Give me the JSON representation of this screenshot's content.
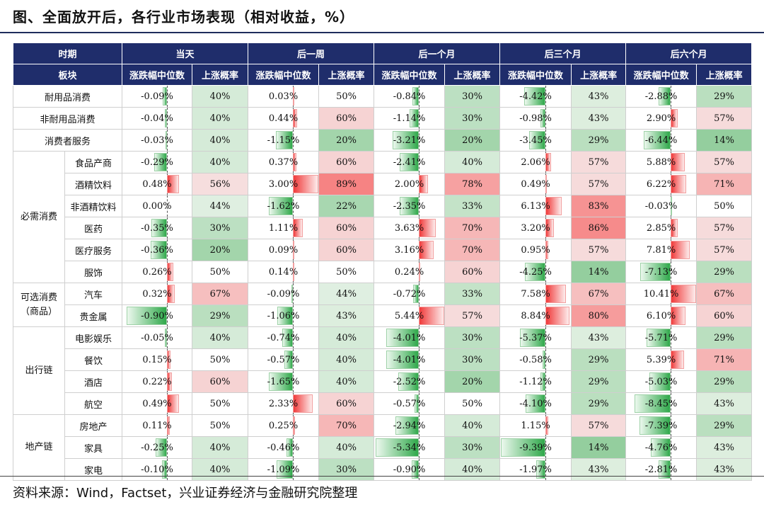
{
  "title": "图、全面放开后，各行业市场表现（相对收益，%）",
  "source": "资料来源：Wind，Factset，兴业证券经济与金融研究院整理",
  "header": {
    "period_label": "时期",
    "sector_label": "板块",
    "periods": [
      "当天",
      "后一周",
      "后一个月",
      "后三个月",
      "后六个月"
    ],
    "median_label": "涨跌幅中位数",
    "prob_label": "上涨概率"
  },
  "colors": {
    "header_bg": "#1f2d6b",
    "up": "#f03a3a",
    "down": "#2fa84a"
  },
  "bar_scale": [
    1.0,
    3.0,
    5.5,
    9.5,
    10.5
  ],
  "rows": [
    {
      "group": "",
      "sector": "耐用品消费",
      "med": [
        "-0.09%",
        "0.03%",
        "-0.84%",
        "-4.42%",
        "-2.88%"
      ],
      "prob": [
        "40%",
        "50%",
        "30%",
        "43%",
        "29%"
      ]
    },
    {
      "group": "",
      "sector": "非耐用品消费",
      "med": [
        "-0.04%",
        "0.44%",
        "-1.14%",
        "-0.98%",
        "2.90%"
      ],
      "prob": [
        "40%",
        "60%",
        "30%",
        "43%",
        "57%"
      ]
    },
    {
      "group": "",
      "sector": "消费者服务",
      "med": [
        "-0.03%",
        "-1.15%",
        "-3.21%",
        "-3.45%",
        "-6.44%"
      ],
      "prob": [
        "40%",
        "20%",
        "20%",
        "29%",
        "14%"
      ]
    },
    {
      "group": "必需消费",
      "sector": "食品产商",
      "med": [
        "-0.29%",
        "0.37%",
        "-2.41%",
        "2.06%",
        "5.88%"
      ],
      "prob": [
        "40%",
        "60%",
        "40%",
        "57%",
        "57%"
      ]
    },
    {
      "group": "必需消费",
      "sector": "酒精饮料",
      "med": [
        "0.48%",
        "3.00%",
        "2.00%",
        "0.49%",
        "6.22%"
      ],
      "prob": [
        "56%",
        "89%",
        "78%",
        "57%",
        "71%"
      ]
    },
    {
      "group": "必需消费",
      "sector": "非酒精饮料",
      "med": [
        "0.00%",
        "-1.62%",
        "-2.35%",
        "6.13%",
        "-0.03%"
      ],
      "prob": [
        "44%",
        "22%",
        "33%",
        "83%",
        "50%"
      ]
    },
    {
      "group": "必需消费",
      "sector": "医药",
      "med": [
        "-0.35%",
        "1.11%",
        "3.63%",
        "3.20%",
        "2.85%"
      ],
      "prob": [
        "30%",
        "60%",
        "70%",
        "86%",
        "57%"
      ]
    },
    {
      "group": "必需消费",
      "sector": "医疗服务",
      "med": [
        "-0.36%",
        "0.09%",
        "3.16%",
        "0.95%",
        "7.81%"
      ],
      "prob": [
        "20%",
        "60%",
        "70%",
        "57%",
        "57%"
      ]
    },
    {
      "group": "必需消费",
      "sector": "服饰",
      "med": [
        "0.26%",
        "0.14%",
        "0.24%",
        "-4.25%",
        "-7.13%"
      ],
      "prob": [
        "50%",
        "50%",
        "60%",
        "14%",
        "29%"
      ]
    },
    {
      "group": "可选消费（商品）",
      "sector": "汽车",
      "med": [
        "0.32%",
        "-0.09%",
        "-0.72%",
        "7.58%",
        "10.41%"
      ],
      "prob": [
        "67%",
        "44%",
        "33%",
        "67%",
        "67%"
      ]
    },
    {
      "group": "可选消费（商品）",
      "sector": "贵金属",
      "med": [
        "-0.90%",
        "-1.06%",
        "5.44%",
        "8.84%",
        "6.10%"
      ],
      "prob": [
        "29%",
        "43%",
        "57%",
        "80%",
        "60%"
      ]
    },
    {
      "group": "出行链",
      "sector": "电影娱乐",
      "med": [
        "-0.05%",
        "-0.74%",
        "-4.01%",
        "-5.37%",
        "-5.71%"
      ],
      "prob": [
        "40%",
        "40%",
        "30%",
        "43%",
        "29%"
      ]
    },
    {
      "group": "出行链",
      "sector": "餐饮",
      "med": [
        "0.15%",
        "-0.57%",
        "-4.01%",
        "-0.58%",
        "5.39%"
      ],
      "prob": [
        "50%",
        "40%",
        "30%",
        "29%",
        "71%"
      ]
    },
    {
      "group": "出行链",
      "sector": "酒店",
      "med": [
        "0.22%",
        "-1.65%",
        "-2.52%",
        "-1.12%",
        "-5.03%"
      ],
      "prob": [
        "60%",
        "40%",
        "20%",
        "29%",
        "29%"
      ]
    },
    {
      "group": "出行链",
      "sector": "航空",
      "med": [
        "0.49%",
        "2.33%",
        "-0.57%",
        "-4.10%",
        "-8.45%"
      ],
      "prob": [
        "50%",
        "60%",
        "50%",
        "29%",
        "43%"
      ]
    },
    {
      "group": "地产链",
      "sector": "房地产",
      "med": [
        "0.11%",
        "0.25%",
        "-2.94%",
        "1.15%",
        "-7.39%"
      ],
      "prob": [
        "50%",
        "70%",
        "40%",
        "57%",
        "29%"
      ]
    },
    {
      "group": "地产链",
      "sector": "家具",
      "med": [
        "-0.25%",
        "-0.46%",
        "-5.34%",
        "-9.39%",
        "-4.76%"
      ],
      "prob": [
        "40%",
        "40%",
        "30%",
        "14%",
        "43%"
      ]
    },
    {
      "group": "地产链",
      "sector": "家电",
      "med": [
        "-0.10%",
        "-1.09%",
        "-0.90%",
        "-1.97%",
        "-2.81%"
      ],
      "prob": [
        "40%",
        "30%",
        "40%",
        "43%",
        "43%"
      ]
    }
  ]
}
